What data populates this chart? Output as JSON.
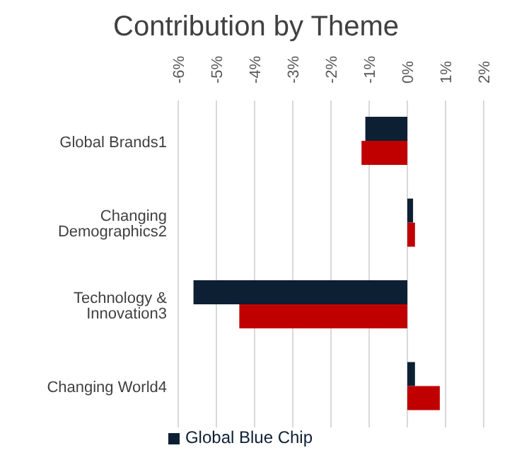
{
  "chart_data": {
    "type": "bar",
    "orientation": "horizontal",
    "title": "Contribution by Theme",
    "categories": [
      "Global Brands1",
      "Changing Demographics2",
      "Technology & Innovation3",
      "Changing World4"
    ],
    "series": [
      {
        "name": "Global Blue Chip",
        "color": "#0d1f33",
        "values": [
          -1.1,
          0.15,
          -5.6,
          0.2
        ]
      },
      {
        "color": "#c00000",
        "values": [
          -1.2,
          0.2,
          -4.4,
          0.85
        ]
      }
    ],
    "xlim": [
      -6,
      2
    ],
    "xticks": [
      {
        "value": -6,
        "label": "-6%"
      },
      {
        "value": -5,
        "label": "-5%"
      },
      {
        "value": -4,
        "label": "-4%"
      },
      {
        "value": -3,
        "label": "-3%"
      },
      {
        "value": -2,
        "label": "-2%"
      },
      {
        "value": -1,
        "label": "-1%"
      },
      {
        "value": 0,
        "label": "0%"
      },
      {
        "value": 1,
        "label": "1%"
      },
      {
        "value": 2,
        "label": "2%"
      }
    ],
    "grid": "x",
    "legend": "bottom"
  }
}
